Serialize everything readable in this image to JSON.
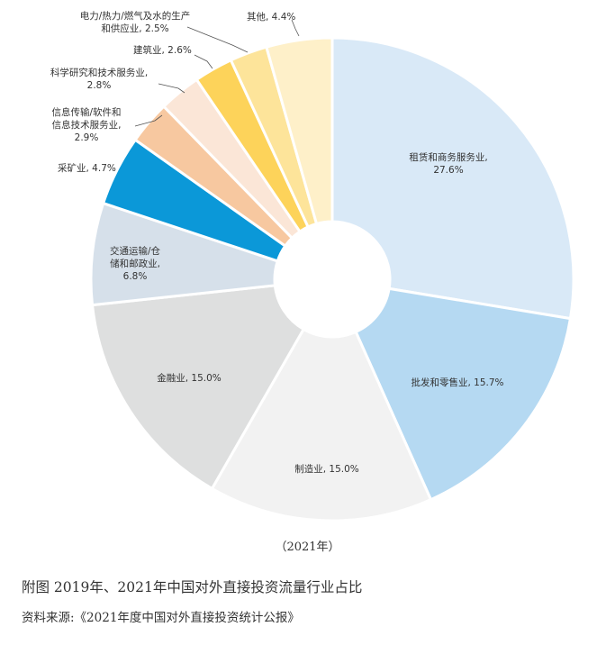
{
  "chart_data": {
    "type": "pie",
    "donut": true,
    "categories": [
      "租赁和商务服务业",
      "批发和零售业",
      "制造业",
      "金融业",
      "交通运输/仓储和邮政业",
      "采矿业",
      "信息传输/软件和信息技术服务业",
      "科学研究和技术服务业",
      "建筑业",
      "电力/热力/燃气及水的生产和供应业",
      "其他"
    ],
    "values": [
      27.6,
      15.7,
      15.0,
      15.0,
      6.8,
      4.7,
      2.9,
      2.8,
      2.6,
      2.5,
      4.4
    ],
    "colors": [
      "#d9e9f7",
      "#b5d9f2",
      "#f2f2f2",
      "#dedfdf",
      "#d6e0ea",
      "#0b98d8",
      "#f7c8a0",
      "#fbe6d7",
      "#fdd35a",
      "#fde49a",
      "#fef0c9"
    ],
    "labels": [
      [
        "租赁和商务服务业,",
        "27.6%"
      ],
      [
        "批发和零售业, 15.7%"
      ],
      [
        "制造业, 15.0%"
      ],
      [
        "金融业, 15.0%"
      ],
      [
        "交通运输/仓",
        "储和邮政业,",
        "6.8%"
      ],
      [
        "采矿业, 4.7%"
      ],
      [
        "信息传输/软件和",
        "信息技术服务业,",
        "2.9%"
      ],
      [
        "科学研究和技术服务业,",
        "2.8%"
      ],
      [
        "建筑业, 2.6%"
      ],
      [
        "电力/热力/燃气及水的生产",
        "和供应业, 2.5%"
      ],
      [
        "其他, 4.4%"
      ]
    ]
  },
  "year_label": "（2021年）",
  "caption": "附图  2019年、2021年中国对外直接投资流量行业占比",
  "source": "资料来源:《2021年度中国对外直接投资统计公报》"
}
